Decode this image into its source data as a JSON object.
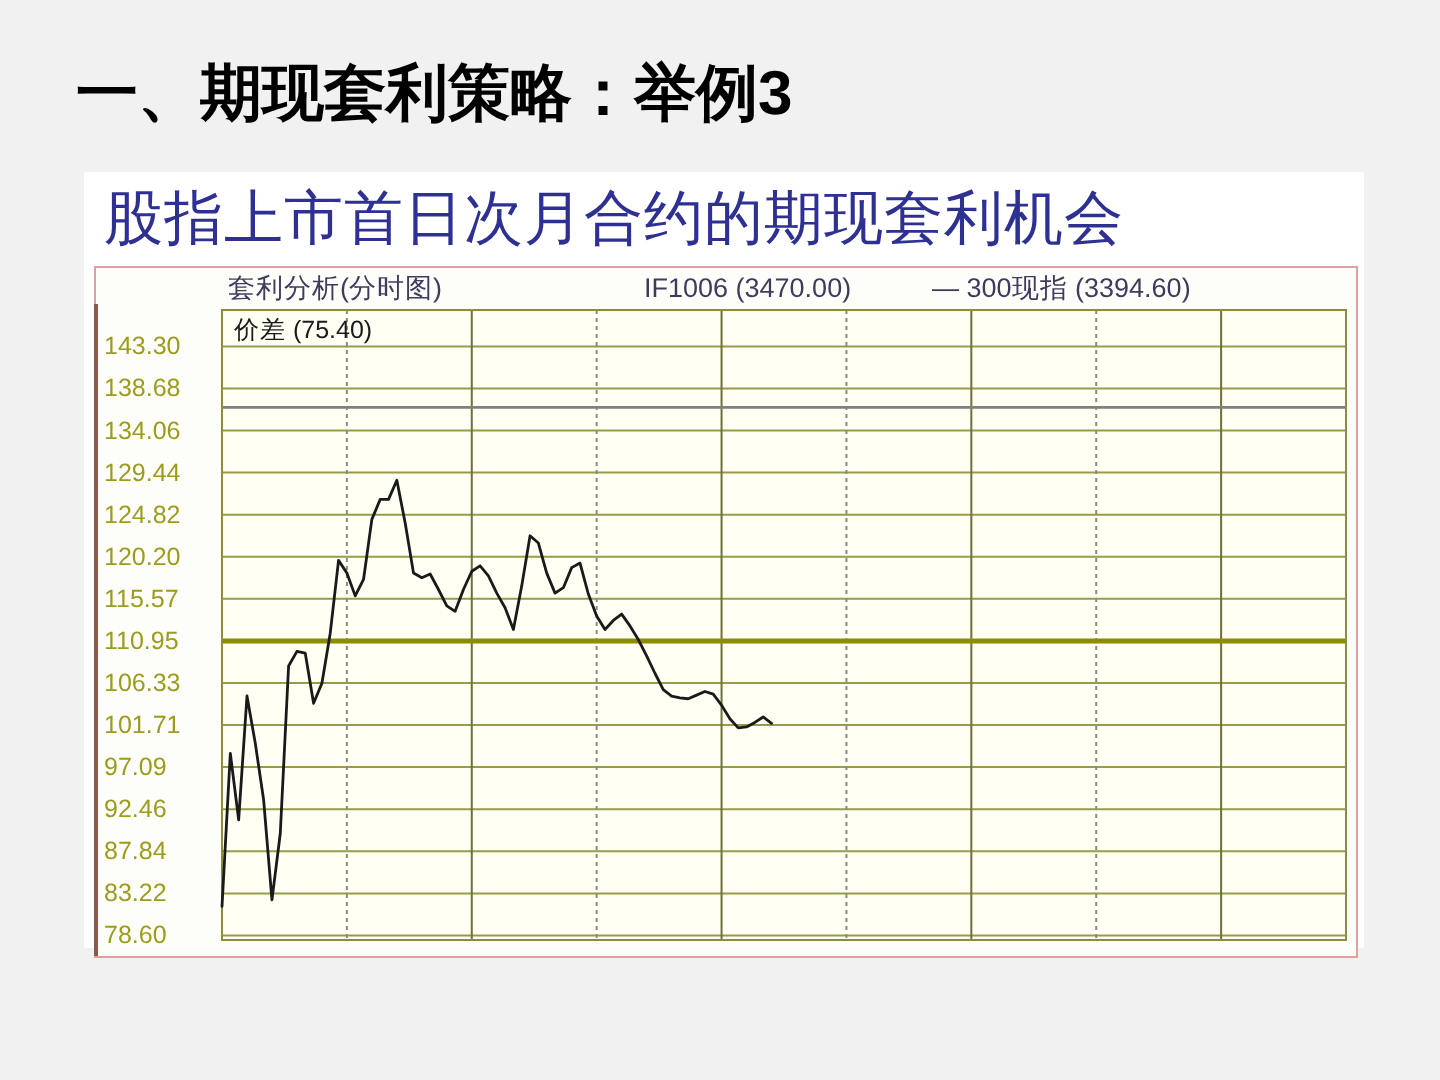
{
  "chart_data": {
    "type": "line",
    "title": "一、期现套利策略：举例3",
    "subtitle": "股指上市首日次月合约的期现套利机会",
    "annotations": [
      "套利分析(分时图)",
      "IF1006 (3470.00)",
      "— 300现指 (3394.60)"
    ],
    "categories": [
      null,
      null,
      null,
      null,
      null,
      null,
      null,
      null,
      null,
      null,
      null,
      null,
      null,
      null,
      null,
      null,
      null,
      null,
      null,
      null,
      null,
      null,
      null,
      null,
      null,
      null,
      null,
      null,
      null,
      null,
      null,
      null,
      null,
      null,
      null,
      null,
      null,
      null,
      null,
      null,
      null,
      null,
      null,
      null,
      null,
      null,
      null,
      null,
      null,
      null,
      null,
      null,
      null,
      null,
      null,
      null,
      null,
      null,
      null,
      null,
      null,
      null,
      null,
      null,
      null,
      null,
      null,
      null,
      null,
      null,
      null,
      null,
      null,
      null,
      null,
      null,
      null,
      null,
      null,
      null,
      null,
      null,
      null,
      null,
      null,
      null,
      null,
      null,
      null,
      null,
      null,
      null,
      null,
      null,
      null,
      null,
      null,
      null,
      null,
      null,
      null,
      null,
      null,
      null,
      null,
      null,
      null,
      null,
      null,
      null,
      null,
      null,
      null,
      null,
      null,
      null,
      null,
      null,
      null,
      null,
      null,
      null,
      null,
      null,
      null,
      null,
      null,
      null,
      null,
      null,
      null,
      null,
      null,
      null,
      null,
      null
    ],
    "series": [
      {
        "name": "价差 (75.40)",
        "color": "#1a1a1a",
        "values": [
          81.8,
          98.6,
          91.3,
          104.9,
          99.7,
          93.5,
          82.5,
          89.8,
          108.2,
          109.8,
          109.6,
          104.1,
          106.3,
          111.8,
          119.8,
          118.4,
          115.9,
          117.7,
          124.3,
          126.5,
          126.5,
          128.6,
          123.9,
          118.4,
          117.9,
          118.3,
          116.6,
          114.8,
          114.2,
          116.6,
          118.6,
          119.2,
          118.1,
          116.2,
          114.6,
          112.2,
          117.0,
          122.5,
          121.7,
          118.4,
          116.2,
          116.8,
          119.0,
          119.5,
          116.1,
          113.7,
          112.2,
          113.2,
          113.9,
          112.6,
          111.1,
          109.3,
          107.4,
          105.6,
          104.9,
          104.7,
          104.6,
          105.0,
          105.4,
          105.1,
          103.9,
          102.4,
          101.4,
          101.5,
          102.0,
          102.6,
          101.9,
          null,
          null,
          null,
          null,
          null,
          null,
          null,
          null,
          null,
          null,
          null,
          null,
          null,
          null,
          null,
          null,
          null,
          null,
          null,
          null,
          null,
          null,
          null,
          null,
          null,
          null,
          null,
          null,
          null,
          null,
          null,
          null,
          null,
          null,
          null,
          null,
          null,
          null,
          null,
          null,
          null,
          null,
          null,
          null,
          null,
          null,
          null,
          null,
          null,
          null,
          null,
          null,
          null,
          null,
          null,
          null,
          null,
          null,
          null,
          null,
          null,
          null,
          null,
          null,
          null,
          null,
          null,
          null,
          null
        ]
      }
    ],
    "ylim": [
      78.1,
      147.3
    ],
    "yticks": [
      {
        "value": 78.6,
        "label": "78.60"
      },
      83.22,
      87.84,
      92.46,
      97.09,
      101.71,
      106.33,
      110.95,
      115.57,
      {
        "value": 120.2,
        "label": "120.20"
      },
      124.82,
      129.44,
      134.06,
      138.68,
      {
        "value": 143.3,
        "label": "143.30"
      }
    ],
    "ref_lines": [
      {
        "axis": "y",
        "value": 110.95,
        "color": "#8c8c00"
      },
      {
        "axis": "y",
        "value": 136.6,
        "color": "#7f7f7f"
      }
    ],
    "grid": true,
    "legend": "top left",
    "line_style": "solid",
    "tick_labels": "y"
  }
}
